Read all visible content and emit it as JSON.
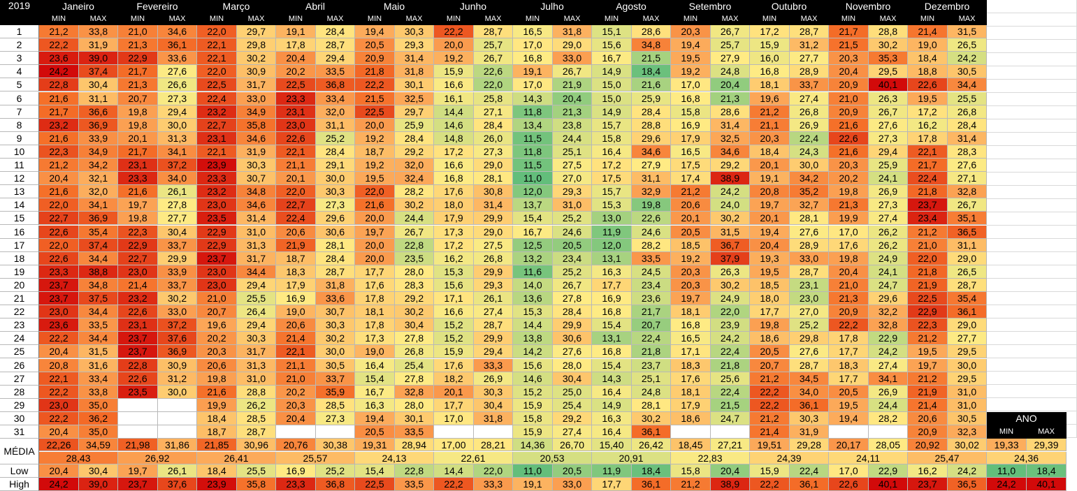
{
  "sheet": {
    "year": "2019",
    "min_label": "MIN",
    "max_label": "MAX",
    "months": [
      "Janeiro",
      "Fevereiro",
      "Março",
      "Abril",
      "Maio",
      "Junho",
      "Julho",
      "Agosto",
      "Setembro",
      "Outubro",
      "Novembro",
      "Dezembro"
    ],
    "days": [
      [
        "21,2",
        "33,8",
        "21,0",
        "34,6",
        "22,0",
        "29,7",
        "19,1",
        "28,4",
        "19,4",
        "30,3",
        "22,2",
        "28,7",
        "16,5",
        "31,8",
        "15,1",
        "28,6",
        "20,3",
        "26,7",
        "17,2",
        "28,7",
        "21,7",
        "28,8",
        "21,4",
        "31,5"
      ],
      [
        "22,2",
        "31,9",
        "21,3",
        "36,1",
        "22,1",
        "29,8",
        "17,8",
        "28,7",
        "20,5",
        "29,3",
        "20,0",
        "25,7",
        "17,0",
        "29,0",
        "15,6",
        "34,8",
        "19,4",
        "25,7",
        "15,9",
        "31,2",
        "21,5",
        "30,2",
        "19,0",
        "26,5"
      ],
      [
        "23,6",
        "39,0",
        "22,9",
        "33,6",
        "22,1",
        "30,2",
        "20,4",
        "29,4",
        "20,9",
        "31,4",
        "19,2",
        "26,7",
        "16,8",
        "33,0",
        "16,7",
        "21,5",
        "19,5",
        "27,9",
        "16,0",
        "27,7",
        "20,3",
        "35,3",
        "18,4",
        "24,2"
      ],
      [
        "24,2",
        "37,4",
        "21,7",
        "27,6",
        "22,0",
        "30,9",
        "20,2",
        "33,5",
        "21,8",
        "31,8",
        "15,9",
        "22,6",
        "19,1",
        "26,7",
        "14,9",
        "18,4",
        "19,2",
        "24,8",
        "16,8",
        "28,9",
        "20,4",
        "29,5",
        "18,8",
        "30,5"
      ],
      [
        "22,8",
        "30,4",
        "21,3",
        "26,6",
        "22,5",
        "31,7",
        "22,5",
        "36,8",
        "22,2",
        "30,1",
        "16,6",
        "22,0",
        "17,0",
        "21,9",
        "15,0",
        "21,6",
        "17,0",
        "20,4",
        "18,1",
        "33,7",
        "20,9",
        "40,1",
        "22,6",
        "34,4"
      ],
      [
        "21,6",
        "31,1",
        "20,7",
        "27,3",
        "22,4",
        "33,0",
        "23,3",
        "33,4",
        "21,5",
        "32,5",
        "16,1",
        "25,8",
        "14,3",
        "20,4",
        "15,0",
        "25,9",
        "16,8",
        "21,3",
        "19,6",
        "27,4",
        "21,0",
        "26,3",
        "19,5",
        "25,5"
      ],
      [
        "21,7",
        "36,6",
        "19,8",
        "29,4",
        "23,2",
        "34,9",
        "23,1",
        "32,0",
        "22,5",
        "29,7",
        "14,4",
        "27,1",
        "11,8",
        "21,3",
        "14,9",
        "28,4",
        "15,8",
        "28,6",
        "21,2",
        "26,8",
        "20,9",
        "26,7",
        "17,2",
        "26,8"
      ],
      [
        "23,2",
        "36,9",
        "19,8",
        "30,0",
        "22,7",
        "35,8",
        "23,0",
        "31,1",
        "20,0",
        "25,9",
        "14,6",
        "28,4",
        "13,4",
        "23,8",
        "15,7",
        "28,8",
        "16,9",
        "31,4",
        "21,1",
        "26,9",
        "21,6",
        "27,6",
        "16,2",
        "28,4"
      ],
      [
        "21,6",
        "33,9",
        "20,1",
        "31,3",
        "23,1",
        "34,6",
        "22,6",
        "25,2",
        "19,2",
        "28,4",
        "14,8",
        "26,0",
        "11,5",
        "24,4",
        "15,8",
        "29,6",
        "17,9",
        "32,5",
        "20,3",
        "22,4",
        "22,6",
        "27,3",
        "17,8",
        "31,4"
      ],
      [
        "22,3",
        "34,9",
        "21,7",
        "34,1",
        "22,1",
        "31,9",
        "22,1",
        "28,4",
        "18,7",
        "29,2",
        "17,2",
        "27,3",
        "11,8",
        "25,1",
        "16,4",
        "34,6",
        "16,5",
        "34,6",
        "18,4",
        "24,3",
        "21,6",
        "29,4",
        "22,1",
        "28,3"
      ],
      [
        "21,2",
        "34,2",
        "23,1",
        "37,2",
        "23,9",
        "30,3",
        "21,1",
        "29,1",
        "19,2",
        "32,0",
        "16,6",
        "29,0",
        "11,5",
        "27,5",
        "17,2",
        "27,9",
        "17,5",
        "29,2",
        "20,1",
        "30,0",
        "20,3",
        "25,9",
        "21,7",
        "27,6"
      ],
      [
        "20,4",
        "32,1",
        "23,3",
        "34,0",
        "23,3",
        "30,7",
        "20,1",
        "30,0",
        "19,5",
        "32,4",
        "16,8",
        "28,1",
        "11,0",
        "27,0",
        "17,5",
        "31,1",
        "17,4",
        "38,9",
        "19,1",
        "34,2",
        "20,2",
        "24,1",
        "22,4",
        "27,1"
      ],
      [
        "21,6",
        "32,0",
        "21,6",
        "26,1",
        "23,2",
        "34,8",
        "22,0",
        "30,3",
        "22,0",
        "28,2",
        "17,6",
        "30,8",
        "12,0",
        "29,3",
        "15,7",
        "32,9",
        "21,2",
        "24,2",
        "20,8",
        "35,2",
        "19,8",
        "26,9",
        "21,8",
        "32,8"
      ],
      [
        "22,0",
        "34,1",
        "19,7",
        "27,8",
        "23,0",
        "34,6",
        "22,7",
        "27,3",
        "21,6",
        "30,2",
        "18,0",
        "31,4",
        "13,7",
        "31,0",
        "15,3",
        "19,8",
        "20,6",
        "24,0",
        "19,7",
        "32,7",
        "21,3",
        "27,3",
        "23,7",
        "26,7"
      ],
      [
        "22,7",
        "36,9",
        "19,8",
        "27,7",
        "23,5",
        "31,4",
        "22,4",
        "29,6",
        "20,0",
        "24,4",
        "17,9",
        "29,9",
        "15,4",
        "25,2",
        "13,0",
        "22,6",
        "20,1",
        "30,2",
        "20,1",
        "28,1",
        "19,9",
        "27,4",
        "23,4",
        "35,1"
      ],
      [
        "22,6",
        "35,4",
        "22,3",
        "30,4",
        "22,9",
        "31,0",
        "20,6",
        "30,6",
        "19,7",
        "26,7",
        "17,3",
        "29,0",
        "16,7",
        "24,6",
        "11,9",
        "24,6",
        "20,5",
        "31,5",
        "19,4",
        "27,6",
        "17,0",
        "26,2",
        "21,2",
        "36,5"
      ],
      [
        "22,0",
        "37,4",
        "22,9",
        "33,7",
        "22,9",
        "31,3",
        "21,9",
        "28,1",
        "20,0",
        "22,8",
        "17,2",
        "27,5",
        "12,5",
        "20,5",
        "12,0",
        "28,2",
        "18,5",
        "36,7",
        "20,4",
        "28,9",
        "17,6",
        "26,2",
        "21,0",
        "31,1"
      ],
      [
        "22,6",
        "34,4",
        "22,7",
        "29,9",
        "23,7",
        "31,7",
        "18,7",
        "28,4",
        "20,0",
        "23,5",
        "16,2",
        "26,8",
        "13,2",
        "23,4",
        "13,1",
        "33,5",
        "19,2",
        "37,9",
        "19,3",
        "33,0",
        "19,8",
        "24,9",
        "22,0",
        "29,0"
      ],
      [
        "23,3",
        "38,8",
        "23,0",
        "33,9",
        "23,0",
        "34,4",
        "18,3",
        "28,7",
        "17,7",
        "28,0",
        "15,3",
        "29,9",
        "11,6",
        "25,2",
        "16,3",
        "24,5",
        "20,3",
        "26,3",
        "19,5",
        "28,7",
        "20,4",
        "24,1",
        "21,8",
        "26,5"
      ],
      [
        "23,7",
        "34,8",
        "21,4",
        "33,7",
        "23,0",
        "29,4",
        "17,9",
        "31,8",
        "17,6",
        "28,3",
        "15,6",
        "29,3",
        "14,0",
        "26,7",
        "17,7",
        "23,4",
        "20,3",
        "30,2",
        "18,5",
        "23,1",
        "21,0",
        "24,7",
        "21,9",
        "28,7"
      ],
      [
        "23,7",
        "37,5",
        "23,2",
        "30,2",
        "21,0",
        "25,5",
        "16,9",
        "33,6",
        "17,8",
        "29,2",
        "17,1",
        "26,1",
        "13,6",
        "27,8",
        "16,9",
        "23,6",
        "19,7",
        "24,9",
        "18,0",
        "23,0",
        "21,3",
        "29,6",
        "22,5",
        "35,4"
      ],
      [
        "23,0",
        "34,4",
        "22,6",
        "33,0",
        "20,7",
        "26,4",
        "19,0",
        "30,7",
        "18,1",
        "30,2",
        "16,6",
        "27,4",
        "15,3",
        "28,4",
        "16,8",
        "21,7",
        "18,1",
        "22,0",
        "17,7",
        "27,0",
        "20,9",
        "32,2",
        "22,9",
        "36,1"
      ],
      [
        "23,6",
        "33,5",
        "23,1",
        "37,2",
        "19,6",
        "29,4",
        "20,6",
        "30,3",
        "17,8",
        "30,4",
        "15,2",
        "28,7",
        "14,4",
        "29,9",
        "15,4",
        "20,7",
        "16,8",
        "23,9",
        "19,8",
        "25,2",
        "22,2",
        "32,8",
        "22,3",
        "29,0"
      ],
      [
        "22,2",
        "34,4",
        "23,7",
        "37,6",
        "20,2",
        "30,3",
        "21,4",
        "30,2",
        "17,3",
        "27,8",
        "15,2",
        "29,9",
        "13,8",
        "30,6",
        "13,1",
        "22,4",
        "16,5",
        "24,2",
        "18,6",
        "29,8",
        "17,8",
        "22,9",
        "21,2",
        "27,7"
      ],
      [
        "20,4",
        "31,5",
        "23,7",
        "36,9",
        "20,3",
        "31,7",
        "22,1",
        "30,0",
        "19,0",
        "26,8",
        "15,9",
        "29,4",
        "14,2",
        "27,6",
        "16,8",
        "21,8",
        "17,1",
        "22,4",
        "20,5",
        "27,6",
        "17,7",
        "24,2",
        "19,5",
        "29,5"
      ],
      [
        "20,8",
        "31,6",
        "22,8",
        "30,9",
        "20,6",
        "31,3",
        "21,1",
        "30,5",
        "16,4",
        "25,4",
        "17,6",
        "33,3",
        "15,6",
        "28,0",
        "15,4",
        "23,7",
        "18,3",
        "21,8",
        "20,7",
        "28,7",
        "18,3",
        "27,4",
        "19,7",
        "30,0"
      ],
      [
        "22,1",
        "33,4",
        "22,6",
        "31,2",
        "19,8",
        "31,0",
        "21,0",
        "33,7",
        "15,4",
        "27,8",
        "18,2",
        "26,9",
        "14,6",
        "30,4",
        "14,3",
        "25,1",
        "17,6",
        "25,6",
        "21,2",
        "34,5",
        "17,7",
        "34,1",
        "21,2",
        "29,5"
      ],
      [
        "22,2",
        "33,8",
        "23,5",
        "30,0",
        "21,6",
        "28,8",
        "20,2",
        "35,9",
        "16,7",
        "32,8",
        "20,1",
        "30,3",
        "15,2",
        "25,0",
        "16,4",
        "24,8",
        "18,1",
        "22,4",
        "22,2",
        "34,0",
        "20,5",
        "26,9",
        "21,9",
        "31,0"
      ],
      [
        "23,0",
        "35,0",
        "",
        "",
        "19,9",
        "26,2",
        "20,3",
        "28,5",
        "16,3",
        "28,0",
        "17,7",
        "30,4",
        "15,9",
        "25,4",
        "14,9",
        "28,1",
        "17,9",
        "21,5",
        "22,2",
        "36,1",
        "19,5",
        "24,4",
        "21,4",
        "31,0"
      ],
      [
        "22,2",
        "36,2",
        "",
        "",
        "18,4",
        "28,5",
        "20,4",
        "27,3",
        "19,4",
        "30,1",
        "17,0",
        "31,8",
        "15,8",
        "29,2",
        "16,3",
        "30,2",
        "18,6",
        "24,7",
        "21,2",
        "30,3",
        "19,4",
        "28,2",
        "20,6",
        "30,5"
      ],
      [
        "20,4",
        "35,0",
        "",
        "",
        "18,7",
        "28,7",
        "",
        "",
        "20,5",
        "33,5",
        "",
        "",
        "15,9",
        "27,4",
        "16,4",
        "36,1",
        "",
        "",
        "21,4",
        "31,9",
        "",
        "",
        "20,9",
        "32,3"
      ]
    ],
    "media": {
      "label": "MÉDIA",
      "minmax": [
        "22,26",
        "34,59",
        "21,98",
        "31,86",
        "21,85",
        "30,96",
        "20,76",
        "30,38",
        "19,31",
        "28,94",
        "17,00",
        "28,21",
        "14,36",
        "26,70",
        "15,40",
        "26,42",
        "18,45",
        "27,21",
        "19,51",
        "29,28",
        "20,17",
        "28,05",
        "20,92",
        "30,02"
      ],
      "avg": [
        "28,43",
        "26,92",
        "26,41",
        "25,57",
        "24,13",
        "22,61",
        "20,53",
        "20,91",
        "22,83",
        "24,39",
        "24,11",
        "25,47"
      ]
    },
    "low": {
      "label": "Low",
      "values": [
        "20,4",
        "30,4",
        "19,7",
        "26,1",
        "18,4",
        "25,5",
        "16,9",
        "25,2",
        "15,4",
        "22,8",
        "14,4",
        "22,0",
        "11,0",
        "20,5",
        "11,9",
        "18,4",
        "15,8",
        "20,4",
        "15,9",
        "22,4",
        "17,0",
        "22,9",
        "16,2",
        "24,2"
      ]
    },
    "high": {
      "label": "High",
      "values": [
        "24,2",
        "39,0",
        "23,7",
        "37,6",
        "23,9",
        "35,8",
        "23,3",
        "36,8",
        "22,5",
        "33,5",
        "22,2",
        "33,3",
        "19,1",
        "33,0",
        "17,7",
        "36,1",
        "21,2",
        "38,9",
        "22,2",
        "36,1",
        "22,6",
        "40,1",
        "23,7",
        "36,5"
      ]
    },
    "ano": {
      "label": "ANO",
      "min_label": "MIN",
      "max_label": "MAX",
      "media": [
        "19,33",
        "29,39"
      ],
      "avg": "24,36",
      "low": [
        "11,0",
        "18,4"
      ],
      "high": [
        "24,2",
        "40,1"
      ]
    }
  }
}
